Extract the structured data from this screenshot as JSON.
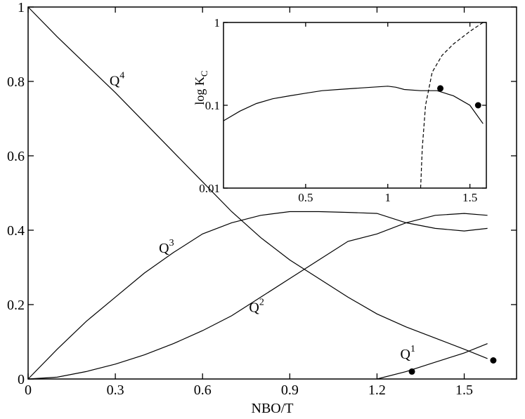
{
  "chart_data": [
    {
      "type": "line",
      "xlabel": "NBO/T",
      "xlim": [
        0,
        1.68
      ],
      "ylim": [
        0,
        1
      ],
      "xticks": [
        0,
        0.3,
        0.6,
        0.9,
        1.2,
        1.5
      ],
      "yticks": [
        0,
        0.2,
        0.4,
        0.6,
        0.8,
        1
      ],
      "series": [
        {
          "label": "Q",
          "sup": "4",
          "label_x": 0.28,
          "label_y": 0.79,
          "color": "#000",
          "x": [
            0,
            0.1,
            0.2,
            0.3,
            0.4,
            0.5,
            0.6,
            0.7,
            0.8,
            0.9,
            1.0,
            1.1,
            1.2,
            1.3,
            1.4,
            1.5,
            1.58
          ],
          "values": [
            1,
            0.92,
            0.845,
            0.77,
            0.69,
            0.61,
            0.53,
            0.45,
            0.38,
            0.32,
            0.27,
            0.22,
            0.175,
            0.14,
            0.11,
            0.08,
            0.055
          ]
        },
        {
          "label": "Q",
          "sup": "3",
          "label_x": 0.45,
          "label_y": 0.34,
          "color": "#000",
          "x": [
            0,
            0.1,
            0.2,
            0.3,
            0.4,
            0.5,
            0.6,
            0.7,
            0.8,
            0.9,
            1.0,
            1.1,
            1.2,
            1.3,
            1.4,
            1.5,
            1.58
          ],
          "values": [
            0,
            0.08,
            0.155,
            0.22,
            0.285,
            0.34,
            0.39,
            0.42,
            0.44,
            0.45,
            0.45,
            0.448,
            0.445,
            0.42,
            0.405,
            0.398,
            0.405
          ]
        },
        {
          "label": "Q",
          "sup": "2",
          "label_x": 0.76,
          "label_y": 0.18,
          "color": "#000",
          "x": [
            0,
            0.1,
            0.2,
            0.3,
            0.4,
            0.5,
            0.6,
            0.7,
            0.8,
            0.9,
            1.0,
            1.1,
            1.2,
            1.3,
            1.4,
            1.5,
            1.58
          ],
          "values": [
            0,
            0.005,
            0.02,
            0.04,
            0.065,
            0.095,
            0.13,
            0.17,
            0.22,
            0.27,
            0.32,
            0.37,
            0.39,
            0.42,
            0.44,
            0.445,
            0.44
          ]
        },
        {
          "label": "Q",
          "sup": "1",
          "label_x": 1.28,
          "label_y": 0.055,
          "color": "#000",
          "x": [
            1.2,
            1.3,
            1.4,
            1.5,
            1.58
          ],
          "values": [
            0,
            0.02,
            0.045,
            0.07,
            0.095
          ]
        }
      ],
      "points": {
        "x": [
          1.32,
          1.6
        ],
        "values": [
          0.02,
          0.05
        ]
      }
    },
    {
      "type": "line",
      "ylabel": "log K",
      "ylabel_sub": "C",
      "xlim": [
        0,
        1.6
      ],
      "ylim": [
        0.01,
        1
      ],
      "log_y": true,
      "xticks": [
        0.5,
        1,
        1.5
      ],
      "yticks": [
        0.01,
        0.1,
        1
      ],
      "series": [
        {
          "color": "#000",
          "dash": false,
          "x": [
            0,
            0.1,
            0.2,
            0.3,
            0.4,
            0.5,
            0.6,
            0.7,
            0.8,
            0.9,
            1.0,
            1.05,
            1.1,
            1.2,
            1.3,
            1.4,
            1.5,
            1.58
          ],
          "values": [
            0.065,
            0.085,
            0.105,
            0.12,
            0.13,
            0.14,
            0.15,
            0.155,
            0.16,
            0.165,
            0.17,
            0.165,
            0.155,
            0.15,
            0.15,
            0.13,
            0.1,
            0.06
          ]
        },
        {
          "color": "#000",
          "dash": true,
          "x": [
            1.2,
            1.21,
            1.23,
            1.27,
            1.33,
            1.4,
            1.5,
            1.58
          ],
          "values": [
            0.01,
            0.03,
            0.1,
            0.25,
            0.4,
            0.55,
            0.78,
            1.0
          ]
        }
      ],
      "points": {
        "x": [
          1.32,
          1.55
        ],
        "values": [
          0.16,
          0.1
        ]
      }
    }
  ]
}
